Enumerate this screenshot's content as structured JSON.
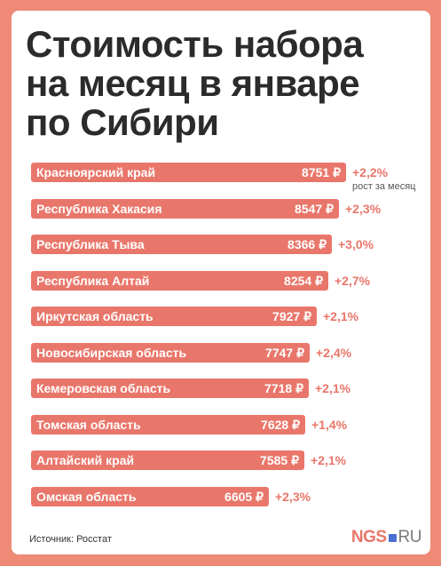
{
  "title": "Стоимость набора\nна месяц в январе\nпо Сибири",
  "growth_note": "рост за месяц",
  "source": "Источник: Росстат",
  "logo": {
    "main": "NGS",
    "suffix": "RU"
  },
  "colors": {
    "bar": "#e9766a",
    "background": "#ee8a76",
    "growth_text": "#e9766a",
    "logo_dot": "#4a6fd3"
  },
  "chart_data": {
    "type": "bar",
    "orientation": "horizontal",
    "categories": [
      "Красноярский край",
      "Республика Хакасия",
      "Республика Тыва",
      "Республика Алтай",
      "Иркутская область",
      "Новосибирская область",
      "Кемеровская область",
      "Томская область",
      "Алтайский край",
      "Омская область"
    ],
    "values": [
      8751,
      8547,
      8366,
      8254,
      7927,
      7747,
      7718,
      7628,
      7585,
      6605
    ],
    "value_labels": [
      "8751 ₽",
      "8547 ₽",
      "8366 ₽",
      "8254 ₽",
      "7927 ₽",
      "7747 ₽",
      "7718 ₽",
      "7628 ₽",
      "7585 ₽",
      "6605 ₽"
    ],
    "growth_labels": [
      "+2,2%",
      "+2,3%",
      "+3,0%",
      "+2,7%",
      "+2,1%",
      "+2,4%",
      "+2,1%",
      "+1,4%",
      "+2,1%",
      "+2,3%"
    ],
    "title": "Стоимость набора на месяц в январе по Сибири",
    "grid": false
  }
}
